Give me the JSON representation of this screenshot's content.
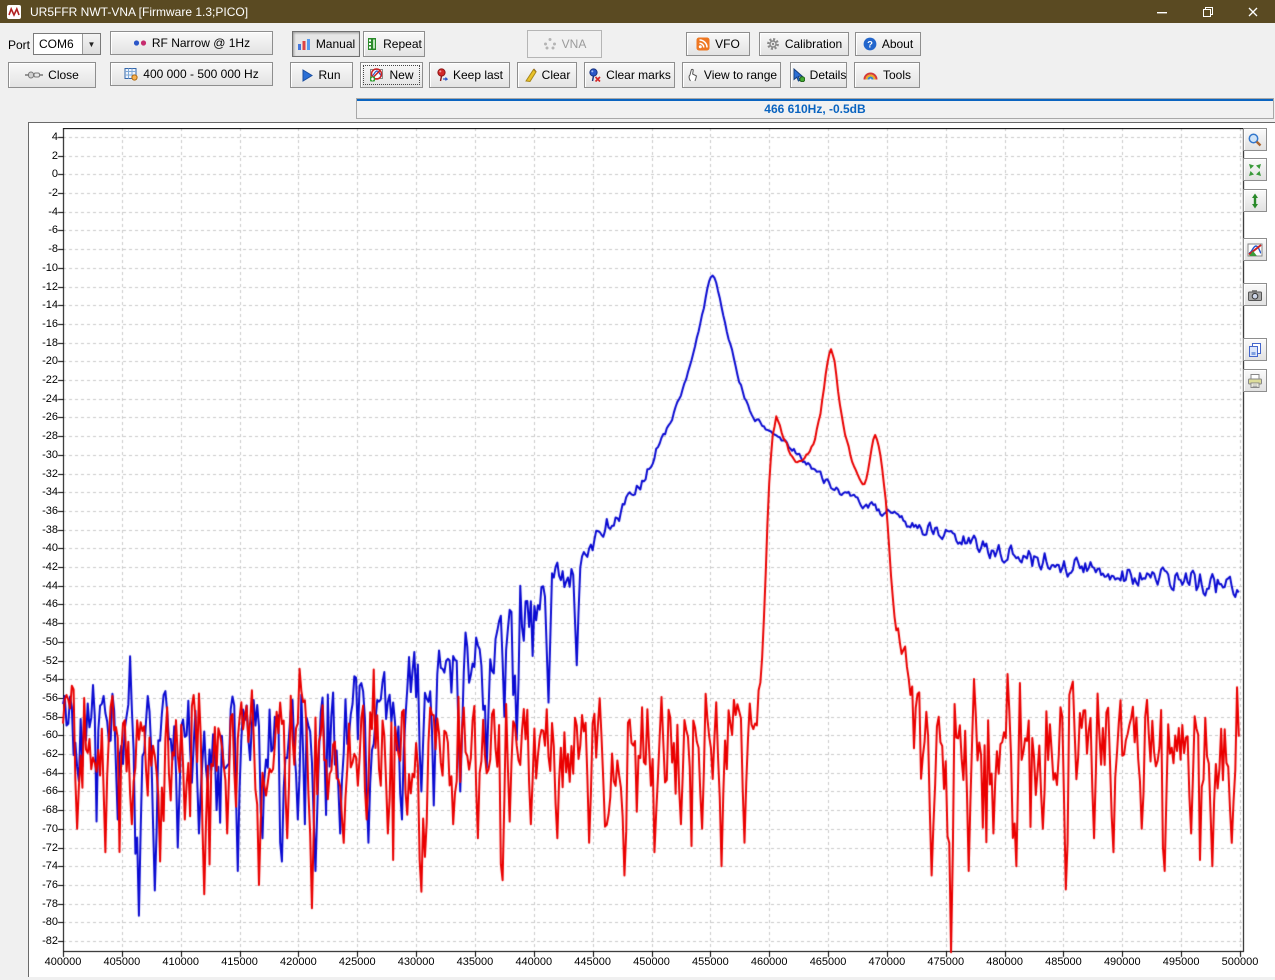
{
  "window": {
    "title": "UR5FFR NWT-VNA [Firmware 1.3;PICO]"
  },
  "toolbar": {
    "port_label": "Port",
    "port_value": "COM6",
    "rf_mode": "RF Narrow @ 1Hz",
    "manual": "Manual",
    "repeat": "Repeat",
    "vna": "VNA",
    "vfo": "VFO",
    "calibration": "Calibration",
    "about": "About",
    "close": "Close",
    "sweep_range": "400 000 - 500 000 Hz",
    "run": "Run",
    "new": "New",
    "keep_last": "Keep last",
    "clear": "Clear",
    "clear_marks": "Clear marks",
    "view_to_range": "View to range",
    "details": "Details",
    "tools": "Tools"
  },
  "status": {
    "readout": "466 610Hz, -0.5dB"
  },
  "colors": {
    "titlebar": "#5a4a22",
    "accent_blue": "#0a64c0",
    "trace_blue": "#0a0ad2",
    "trace_red": "#ea0000",
    "grid": "#cbcbcb"
  },
  "chart_data": {
    "type": "line",
    "title": "",
    "xlabel": "",
    "ylabel": "",
    "axes": {
      "x_min": 400000,
      "x_max": 500000,
      "x_tick_step": 5000,
      "y_max": 4,
      "y_min": -82,
      "y_tick_step": 2,
      "y_clip_bottom": -83.2,
      "grid": "dashed"
    },
    "series": [
      {
        "name": "trace-blue",
        "color": "#0a0ad2",
        "seed": 42,
        "keypoints": [
          [
            400000,
            -57.5
          ],
          [
            404000,
            -59.5
          ],
          [
            410000,
            -60
          ],
          [
            416000,
            -60
          ],
          [
            421000,
            -59.5
          ],
          [
            424000,
            -58.5
          ],
          [
            427000,
            -57
          ],
          [
            429000,
            -56
          ],
          [
            431000,
            -54.5
          ],
          [
            433000,
            -53
          ],
          [
            435000,
            -51.5
          ],
          [
            437000,
            -50
          ],
          [
            439000,
            -47.5
          ],
          [
            441000,
            -45
          ],
          [
            443000,
            -42.5
          ],
          [
            445000,
            -39.8
          ],
          [
            447000,
            -36.8
          ],
          [
            448500,
            -34.3
          ],
          [
            450000,
            -30.8
          ],
          [
            451200,
            -27.6
          ],
          [
            452300,
            -24.3
          ],
          [
            453300,
            -20.5
          ],
          [
            454200,
            -15.8
          ],
          [
            454800,
            -12
          ],
          [
            455150,
            -10.5
          ],
          [
            455500,
            -11.6
          ],
          [
            456000,
            -14.5
          ],
          [
            456700,
            -18.3
          ],
          [
            457400,
            -21.8
          ],
          [
            458100,
            -24.6
          ],
          [
            458800,
            -26.2
          ],
          [
            459600,
            -27.1
          ],
          [
            460600,
            -27.9
          ],
          [
            461600,
            -28.9
          ],
          [
            462600,
            -30.1
          ],
          [
            463600,
            -31.3
          ],
          [
            464500,
            -32.4
          ],
          [
            465200,
            -33.2
          ],
          [
            466000,
            -33.9
          ],
          [
            467000,
            -34.6
          ],
          [
            468200,
            -35.4
          ],
          [
            469500,
            -36.1
          ],
          [
            471000,
            -36.9
          ],
          [
            473000,
            -37.8
          ],
          [
            475000,
            -38.6
          ],
          [
            477500,
            -39.6
          ],
          [
            480000,
            -40.5
          ],
          [
            482500,
            -41.2
          ],
          [
            485000,
            -41.8
          ],
          [
            487500,
            -42.3
          ],
          [
            490000,
            -42.8
          ],
          [
            492500,
            -43.2
          ],
          [
            495000,
            -43.5
          ],
          [
            497500,
            -43.8
          ],
          [
            500000,
            -44.1
          ]
        ],
        "noise_env": [
          [
            400000,
            5.2
          ],
          [
            424000,
            5.2
          ],
          [
            430000,
            4.6
          ],
          [
            435000,
            3.8
          ],
          [
            439000,
            3
          ],
          [
            442000,
            2.2
          ],
          [
            445000,
            1.6
          ],
          [
            447500,
            1.1
          ],
          [
            449500,
            0.7
          ],
          [
            451500,
            0.4
          ],
          [
            453000,
            0.25
          ],
          [
            456000,
            0.2
          ],
          [
            458000,
            0.3
          ],
          [
            461000,
            0.35
          ],
          [
            465000,
            0.45
          ],
          [
            468000,
            0.55
          ],
          [
            471000,
            0.65
          ],
          [
            474000,
            0.8
          ],
          [
            478000,
            0.95
          ],
          [
            483000,
            1.1
          ],
          [
            490000,
            1.25
          ],
          [
            500000,
            1.35
          ]
        ],
        "spikes": [
          [
            404700,
            -69
          ],
          [
            406500,
            -79.3
          ],
          [
            407800,
            -76.6
          ],
          [
            409700,
            -72
          ],
          [
            411500,
            -70.5
          ],
          [
            413000,
            -68
          ],
          [
            414800,
            -74.5
          ],
          [
            417000,
            -71
          ],
          [
            418600,
            -73.5
          ],
          [
            420000,
            -69
          ],
          [
            421500,
            -74.5
          ],
          [
            423500,
            -70.5
          ],
          [
            426000,
            -71.5
          ],
          [
            428800,
            -69
          ],
          [
            430500,
            -66
          ],
          [
            431500,
            -67.5
          ],
          [
            433800,
            -66
          ],
          [
            436000,
            -63.5
          ],
          [
            438500,
            -60.5
          ],
          [
            441300,
            -56.5
          ],
          [
            443600,
            -52.5
          ]
        ],
        "peak": {
          "freq": 455150,
          "dB": -10.5
        }
      },
      {
        "name": "trace-red",
        "color": "#ea0000",
        "seed": 1337,
        "keypoints": [
          [
            400000,
            -56
          ],
          [
            403000,
            -60.5
          ],
          [
            410000,
            -61
          ],
          [
            420000,
            -61
          ],
          [
            430000,
            -61.3
          ],
          [
            440000,
            -60.8
          ],
          [
            448000,
            -60.5
          ],
          [
            455000,
            -60.2
          ],
          [
            457500,
            -59.8
          ],
          [
            458800,
            -58.5
          ],
          [
            459300,
            -54
          ],
          [
            459650,
            -45
          ],
          [
            459950,
            -34
          ],
          [
            460250,
            -28.2
          ],
          [
            460650,
            -25.8
          ],
          [
            461100,
            -27.7
          ],
          [
            461700,
            -29.6
          ],
          [
            462400,
            -30.9
          ],
          [
            463100,
            -30.3
          ],
          [
            463800,
            -28.6
          ],
          [
            464350,
            -25.8
          ],
          [
            464750,
            -21.8
          ],
          [
            465050,
            -19.1
          ],
          [
            465250,
            -18.6
          ],
          [
            465550,
            -20.2
          ],
          [
            465950,
            -24
          ],
          [
            466450,
            -27.6
          ],
          [
            467050,
            -30.6
          ],
          [
            467650,
            -32.4
          ],
          [
            468150,
            -33.2
          ],
          [
            468500,
            -31.2
          ],
          [
            468800,
            -28.5
          ],
          [
            469050,
            -27.7
          ],
          [
            469350,
            -29.4
          ],
          [
            469650,
            -31.8
          ],
          [
            469900,
            -34.8
          ],
          [
            470100,
            -38
          ],
          [
            470300,
            -42
          ],
          [
            470550,
            -46.5
          ],
          [
            470850,
            -48.8
          ],
          [
            471400,
            -51.5
          ],
          [
            472000,
            -54.2
          ],
          [
            472700,
            -57.3
          ],
          [
            473500,
            -59.8
          ],
          [
            474500,
            -60.5
          ],
          [
            476000,
            -60.2
          ],
          [
            480000,
            -60.2
          ],
          [
            484000,
            -59.8
          ],
          [
            488000,
            -60.2
          ],
          [
            492000,
            -60
          ],
          [
            496000,
            -60.2
          ],
          [
            500000,
            -60.5
          ]
        ],
        "noise_env": [
          [
            400000,
            5.4
          ],
          [
            456000,
            5.4
          ],
          [
            458500,
            3.5
          ],
          [
            459300,
            1.2
          ],
          [
            459800,
            0.4
          ],
          [
            461000,
            0.25
          ],
          [
            466000,
            0.25
          ],
          [
            469500,
            0.3
          ],
          [
            470400,
            0.5
          ],
          [
            471200,
            1.4
          ],
          [
            472200,
            2.6
          ],
          [
            473200,
            4
          ],
          [
            474200,
            5.4
          ],
          [
            500000,
            5.4
          ]
        ],
        "spikes": [
          [
            401200,
            -70
          ],
          [
            403600,
            -72.5
          ],
          [
            405800,
            -69.5
          ],
          [
            408300,
            -73.5
          ],
          [
            410300,
            -69
          ],
          [
            412000,
            -77
          ],
          [
            414000,
            -70.5
          ],
          [
            416600,
            -76
          ],
          [
            419000,
            -71
          ],
          [
            421200,
            -78.5
          ],
          [
            423800,
            -71.5
          ],
          [
            425800,
            -69
          ],
          [
            427600,
            -70.5
          ],
          [
            429200,
            -68.5
          ],
          [
            430700,
            -73
          ],
          [
            433200,
            -69.5
          ],
          [
            435300,
            -71
          ],
          [
            437300,
            -75.5
          ],
          [
            439800,
            -69.5
          ],
          [
            442000,
            -71
          ],
          [
            444700,
            -71.5
          ],
          [
            446300,
            -68.5
          ],
          [
            447700,
            -75
          ],
          [
            450300,
            -72.5
          ],
          [
            452500,
            -69.5
          ],
          [
            454300,
            -70
          ],
          [
            455900,
            -74
          ],
          [
            457900,
            -71.5
          ],
          [
            473800,
            -75
          ],
          [
            475400,
            -83.4
          ],
          [
            476900,
            -74.5
          ],
          [
            479000,
            -70.5
          ],
          [
            481000,
            -74
          ],
          [
            483300,
            -70
          ],
          [
            485200,
            -76.5
          ],
          [
            487600,
            -71
          ],
          [
            489300,
            -72.5
          ],
          [
            491600,
            -70
          ],
          [
            493600,
            -74.5
          ],
          [
            495800,
            -70.5
          ],
          [
            497700,
            -74
          ],
          [
            499300,
            -71.5
          ]
        ],
        "peaks": [
          {
            "freq": 460650,
            "dB": -25.8
          },
          {
            "freq": 465250,
            "dB": -18.6
          },
          {
            "freq": 469050,
            "dB": -27.7
          }
        ]
      }
    ]
  }
}
